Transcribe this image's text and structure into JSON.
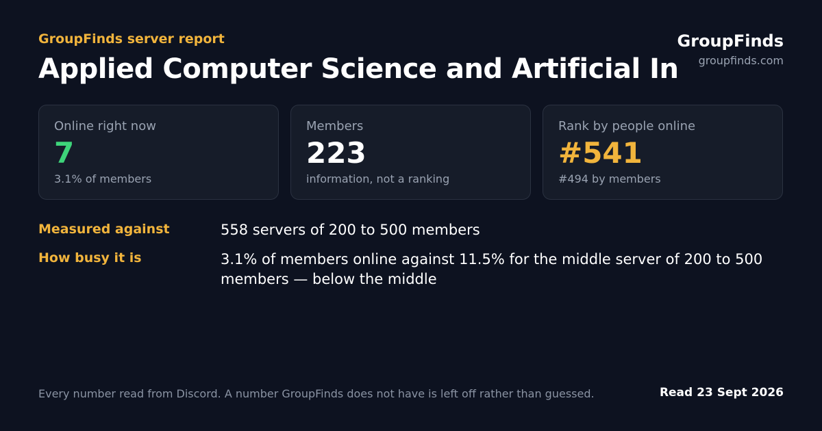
{
  "header": {
    "eyebrow": "GroupFinds server report",
    "title": "Applied Computer Science and Artificial In",
    "brand": "GroupFinds",
    "site": "groupfinds.com"
  },
  "cards": [
    {
      "label": "Online right now",
      "value": "7",
      "note": "3.1% of members"
    },
    {
      "label": "Members",
      "value": "223",
      "note": "information, not a ranking"
    },
    {
      "label": "Rank by people online",
      "value": "#541",
      "note": "#494 by members"
    }
  ],
  "facts": [
    {
      "term": "Measured against",
      "text": "558 servers of 200 to 500 members"
    },
    {
      "term": "How busy it is",
      "text": "3.1% of members online against 11.5% for the middle server of 200 to 500 members — below the middle"
    }
  ],
  "footer": {
    "note": "Every number read from Discord. A number GroupFinds does not have is left off rather than guessed.",
    "date": "Read 23 Sept 2026"
  }
}
